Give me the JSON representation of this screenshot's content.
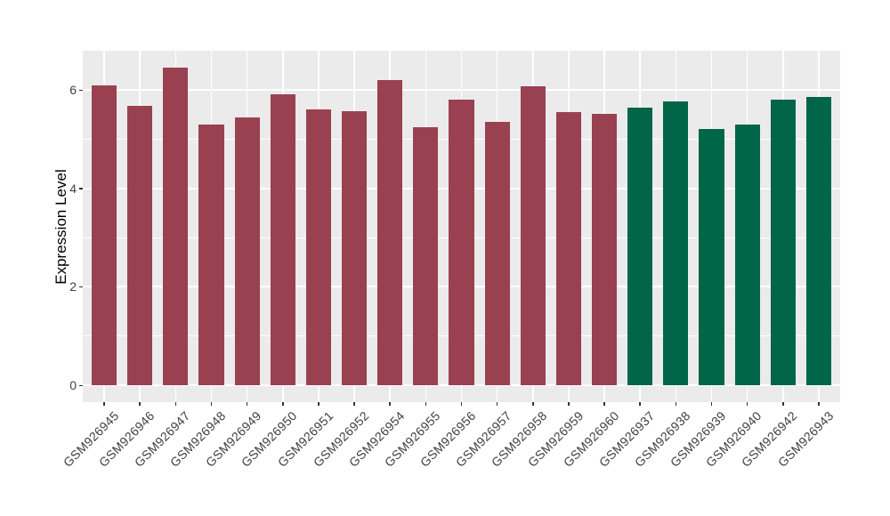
{
  "figure": {
    "background": "#FFFFFF"
  },
  "chart_data": {
    "type": "bar",
    "title": "",
    "xlabel": "",
    "ylabel": "Expression Level",
    "legend_position": "none",
    "grid": true,
    "panel_background": "#EBEBEB",
    "gridline_color": "#FFFFFF",
    "axis_text_color": "#404040",
    "axis_title_color": "#000000",
    "tick_mark_color": "#333333",
    "yticks": [
      0,
      2,
      4,
      6
    ],
    "y_minor_gridlines": [
      1,
      3,
      5
    ],
    "ylim": [
      0,
      6.8
    ],
    "x_label_angle_deg": 45,
    "categories": [
      "GSM926945",
      "GSM926946",
      "GSM926947",
      "GSM926948",
      "GSM926949",
      "GSM926950",
      "GSM926951",
      "GSM926952",
      "GSM926954",
      "GSM926955",
      "GSM926956",
      "GSM926957",
      "GSM926958",
      "GSM926959",
      "GSM926960",
      "GSM926937",
      "GSM926938",
      "GSM926939",
      "GSM926940",
      "GSM926942",
      "GSM926943"
    ],
    "values": [
      6.1,
      5.68,
      6.46,
      5.3,
      5.44,
      5.92,
      5.6,
      5.57,
      6.2,
      5.25,
      5.8,
      5.36,
      6.07,
      5.56,
      5.51,
      5.65,
      5.77,
      5.2,
      5.3,
      5.81,
      5.86
    ],
    "bar_groups": [
      "group1",
      "group1",
      "group1",
      "group1",
      "group1",
      "group1",
      "group1",
      "group1",
      "group1",
      "group1",
      "group1",
      "group1",
      "group1",
      "group1",
      "group1",
      "group2",
      "group2",
      "group2",
      "group2",
      "group2",
      "group2"
    ],
    "group_colors": {
      "group1": "#994150",
      "group2": "#006647"
    }
  }
}
